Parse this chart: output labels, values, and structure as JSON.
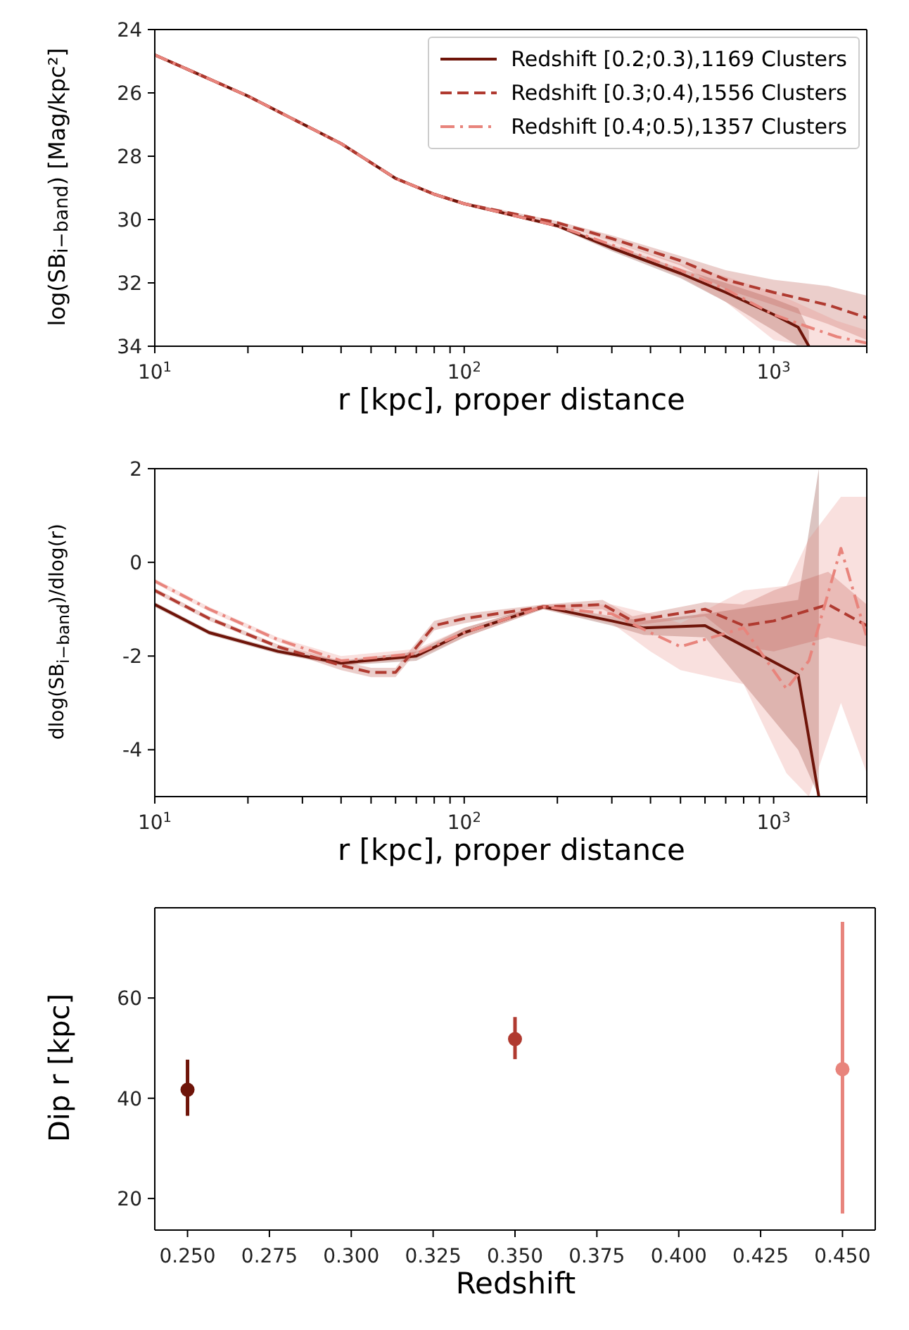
{
  "chart_data": [
    {
      "type": "line",
      "ylabel": "log(SB$_{i−band}$) [Mag/kpc²]",
      "xlabel": "r [kpc], proper distance",
      "log": "x",
      "xlim": [
        10,
        2000
      ],
      "ylim": [
        34,
        24
      ],
      "yticks": [
        24,
        26,
        28,
        30,
        32,
        34
      ],
      "xticks": [
        {
          "value": 10,
          "label": "10$^{1}$"
        },
        {
          "value": 20,
          "label": null
        },
        {
          "value": 30,
          "label": null
        },
        {
          "value": 40,
          "label": null
        },
        {
          "value": 50,
          "label": null
        },
        {
          "value": 60,
          "label": null
        },
        {
          "value": 70,
          "label": null
        },
        {
          "value": 80,
          "label": null
        },
        {
          "value": 90,
          "label": null
        },
        {
          "value": 100,
          "label": "10$^{2}$"
        },
        {
          "value": 200,
          "label": null
        },
        {
          "value": 300,
          "label": null
        },
        {
          "value": 400,
          "label": null
        },
        {
          "value": 500,
          "label": null
        },
        {
          "value": 600,
          "label": null
        },
        {
          "value": 700,
          "label": null
        },
        {
          "value": 800,
          "label": null
        },
        {
          "value": 900,
          "label": null
        },
        {
          "value": 1000,
          "label": "10$^{3}$"
        },
        {
          "value": 2000,
          "label": null
        }
      ],
      "legend": "top right",
      "series": [
        {
          "name": "Redshift [0.2;0.3),1169 Clusters",
          "color": "#6e1409",
          "line_style": "solid",
          "x": [
            10,
            20,
            40,
            60,
            80,
            100,
            200,
            300,
            500,
            700,
            1000,
            1200,
            1300
          ],
          "values": [
            24.8,
            26.1,
            27.6,
            28.7,
            29.2,
            29.5,
            30.2,
            30.9,
            31.7,
            32.3,
            33.0,
            33.4,
            34
          ],
          "lower": [
            24.75,
            26.05,
            27.55,
            28.65,
            29.15,
            29.45,
            30.15,
            30.8,
            31.55,
            32.0,
            32.5,
            32.8,
            33.5
          ],
          "upper": [
            24.85,
            26.15,
            27.65,
            28.75,
            29.25,
            29.55,
            30.25,
            31.0,
            31.85,
            32.6,
            33.5,
            34,
            34
          ]
        },
        {
          "name": "Redshift [0.3;0.4),1556 Clusters",
          "color": "#b03a30",
          "line_style": "dashed",
          "x": [
            10,
            20,
            40,
            60,
            80,
            100,
            200,
            300,
            500,
            700,
            1000,
            1500,
            2000
          ],
          "values": [
            24.8,
            26.1,
            27.6,
            28.7,
            29.2,
            29.5,
            30.1,
            30.6,
            31.3,
            31.9,
            32.3,
            32.7,
            33.1
          ],
          "lower": [
            24.75,
            26.05,
            27.55,
            28.65,
            29.15,
            29.45,
            30.05,
            30.5,
            31.15,
            31.6,
            31.9,
            32.1,
            32.4
          ],
          "upper": [
            24.85,
            26.15,
            27.65,
            28.75,
            29.25,
            29.55,
            30.15,
            30.7,
            31.45,
            32.2,
            32.7,
            33.3,
            33.8
          ]
        },
        {
          "name": "Redshift [0.4;0.5),1357 Clusters",
          "color": "#e8847c",
          "line_style": "dashdot",
          "x": [
            10,
            20,
            40,
            60,
            80,
            100,
            200,
            300,
            500,
            700,
            1000,
            1300,
            1600,
            2000
          ],
          "values": [
            24.8,
            26.1,
            27.6,
            28.7,
            29.2,
            29.5,
            30.2,
            30.8,
            31.6,
            32.2,
            33.0,
            33.4,
            33.7,
            33.9
          ],
          "lower": [
            24.75,
            26.05,
            27.55,
            28.65,
            29.15,
            29.45,
            30.15,
            30.7,
            31.4,
            31.8,
            32.3,
            32.8,
            33.2,
            33.5
          ],
          "upper": [
            24.85,
            26.15,
            27.65,
            28.75,
            29.25,
            29.55,
            30.25,
            30.9,
            31.8,
            32.6,
            33.8,
            34,
            34,
            34
          ]
        }
      ]
    },
    {
      "type": "line",
      "ylabel": "dlog(SB$_{i−band}$)/dlog(r)",
      "xlabel": "r [kpc], proper distance",
      "log": "x",
      "xlim": [
        10,
        2000
      ],
      "ylim": [
        -5,
        2
      ],
      "yticks": [
        -4,
        -2,
        0,
        2
      ],
      "xticks": [
        {
          "value": 10,
          "label": "10$^{1}$"
        },
        {
          "value": 20,
          "label": null
        },
        {
          "value": 30,
          "label": null
        },
        {
          "value": 40,
          "label": null
        },
        {
          "value": 50,
          "label": null
        },
        {
          "value": 60,
          "label": null
        },
        {
          "value": 70,
          "label": null
        },
        {
          "value": 80,
          "label": null
        },
        {
          "value": 90,
          "label": null
        },
        {
          "value": 100,
          "label": "10$^{2}$"
        },
        {
          "value": 200,
          "label": null
        },
        {
          "value": 300,
          "label": null
        },
        {
          "value": 400,
          "label": null
        },
        {
          "value": 500,
          "label": null
        },
        {
          "value": 600,
          "label": null
        },
        {
          "value": 700,
          "label": null
        },
        {
          "value": 800,
          "label": null
        },
        {
          "value": 900,
          "label": null
        },
        {
          "value": 1000,
          "label": "10$^{3}$"
        },
        {
          "value": 2000,
          "label": null
        }
      ],
      "series": [
        {
          "color": "#6e1409",
          "line_style": "solid",
          "x": [
            10,
            15,
            25,
            40,
            70,
            100,
            180,
            300,
            380,
            600,
            1200,
            1400
          ],
          "values": [
            -0.9,
            -1.5,
            -1.9,
            -2.15,
            -2.0,
            -1.5,
            -0.95,
            -1.25,
            -1.4,
            -1.35,
            -2.4,
            -5
          ],
          "lower": [
            -0.95,
            -1.55,
            -1.95,
            -2.2,
            -2.1,
            -1.6,
            -1.0,
            -1.35,
            -1.55,
            -1.6,
            -4.0,
            -5
          ],
          "upper": [
            -0.85,
            -1.45,
            -1.85,
            -2.1,
            -1.9,
            -1.4,
            -0.9,
            -1.15,
            -1.25,
            -1.1,
            -0.8,
            2
          ]
        },
        {
          "color": "#b03a30",
          "line_style": "dashed",
          "x": [
            10,
            15,
            25,
            40,
            50,
            60,
            80,
            100,
            180,
            280,
            350,
            600,
            800,
            1000,
            1500,
            2000
          ],
          "values": [
            -0.6,
            -1.2,
            -1.8,
            -2.2,
            -2.35,
            -2.35,
            -1.35,
            -1.2,
            -0.95,
            -0.9,
            -1.25,
            -1.0,
            -1.35,
            -1.25,
            -0.9,
            -1.35
          ],
          "lower": [
            -0.65,
            -1.25,
            -1.85,
            -2.3,
            -2.45,
            -2.45,
            -1.45,
            -1.3,
            -1.0,
            -1.0,
            -1.35,
            -1.15,
            -1.8,
            -1.9,
            -1.6,
            -1.8
          ],
          "upper": [
            -0.55,
            -1.15,
            -1.75,
            -2.1,
            -2.25,
            -2.25,
            -1.25,
            -1.1,
            -0.9,
            -0.8,
            -1.15,
            -0.85,
            -0.9,
            -0.6,
            -0.2,
            -0.9
          ]
        },
        {
          "color": "#e8847c",
          "line_style": "dashdot",
          "x": [
            10,
            15,
            25,
            40,
            70,
            100,
            180,
            300,
            400,
            500,
            800,
            1100,
            1300,
            1650,
            2000
          ],
          "values": [
            -0.4,
            -1.0,
            -1.65,
            -2.1,
            -1.95,
            -1.5,
            -0.95,
            -1.1,
            -1.5,
            -1.8,
            -1.4,
            -2.7,
            -2.1,
            0.3,
            -1.6
          ],
          "lower": [
            -0.45,
            -1.05,
            -1.7,
            -2.2,
            -2.05,
            -1.6,
            -1.0,
            -1.3,
            -1.9,
            -2.3,
            -2.6,
            -4.5,
            -5,
            -3.0,
            -4.5
          ],
          "upper": [
            -0.35,
            -0.95,
            -1.6,
            -2.0,
            -1.85,
            -1.4,
            -0.9,
            -0.9,
            -1.1,
            -1.3,
            -0.6,
            -0.5,
            0.5,
            1.4,
            1.4
          ]
        }
      ]
    },
    {
      "type": "scatter",
      "ylabel": "Dip r [kpc]",
      "xlabel": "Redshift",
      "xlim": [
        0.24,
        0.46
      ],
      "ylim": [
        13.7,
        78
      ],
      "xticks": [
        {
          "value": 0.25,
          "label": "0.250"
        },
        {
          "value": 0.275,
          "label": "0.275"
        },
        {
          "value": 0.3,
          "label": "0.300"
        },
        {
          "value": 0.325,
          "label": "0.325"
        },
        {
          "value": 0.35,
          "label": "0.350"
        },
        {
          "value": 0.375,
          "label": "0.375"
        },
        {
          "value": 0.4,
          "label": "0.400"
        },
        {
          "value": 0.425,
          "label": "0.425"
        },
        {
          "value": 0.45,
          "label": "0.450"
        }
      ],
      "yticks": [
        20,
        40,
        60
      ],
      "marker": "circle",
      "series": [
        {
          "x": [
            0.25,
            0.35,
            0.45
          ],
          "values": [
            41.7,
            51.8,
            45.8
          ],
          "errors": [
            [
              36.5,
              47.7
            ],
            [
              47.8,
              56.2
            ],
            [
              17.0,
              75.2
            ]
          ],
          "colors": [
            "#6e1409",
            "#b03a30",
            "#e8847c"
          ]
        }
      ]
    }
  ]
}
